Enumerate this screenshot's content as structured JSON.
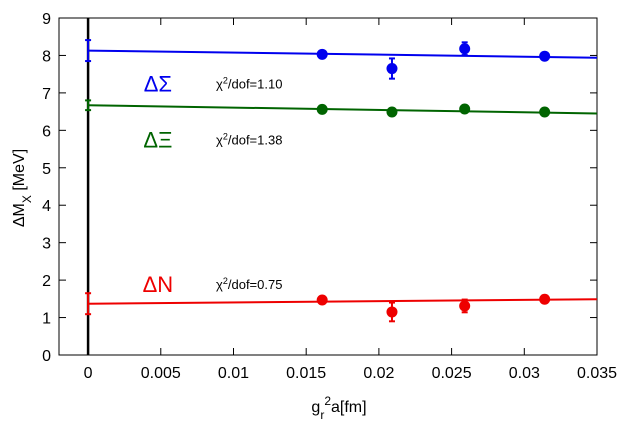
{
  "chart_data": {
    "type": "scatter",
    "xlabel": {
      "base": "g",
      "sub": "r",
      "sup": "2",
      "rest": "a[fm]"
    },
    "ylabel": {
      "base": "ΔM",
      "sub": "X",
      "rest": " [MeV]"
    },
    "xlim": [
      -0.002,
      0.035
    ],
    "ylim": [
      0,
      9
    ],
    "xticks": [
      0,
      0.005,
      0.01,
      0.015,
      0.02,
      0.025,
      0.03,
      0.035
    ],
    "xtick_labels": [
      "0",
      "0.005",
      "0.01",
      "0.015",
      "0.02",
      "0.025",
      "0.03",
      "0.035"
    ],
    "yticks": [
      0,
      1,
      2,
      3,
      4,
      5,
      6,
      7,
      8,
      9
    ],
    "ytick_labels": [
      "0",
      "1",
      "2",
      "3",
      "4",
      "5",
      "6",
      "7",
      "8",
      "9"
    ],
    "grid": false,
    "vertical_line_x": 0,
    "series": [
      {
        "name": "ΔΣ",
        "color": "#0000ee",
        "chi_label": "/dof=1.10",
        "label_pos": [
          0.0048,
          7.25
        ],
        "chi_pos": [
          0.0088,
          7.25
        ],
        "x": [
          0.0161,
          0.0209,
          0.0259,
          0.0314
        ],
        "y": [
          8.03,
          7.65,
          8.18,
          7.98
        ],
        "yerr": [
          0.07,
          0.27,
          0.17,
          0.07
        ],
        "fit": {
          "x": [
            0,
            0.035
          ],
          "y": [
            8.13,
            7.94
          ]
        },
        "extrapolation": {
          "x": 0,
          "y": 8.13,
          "yerr": 0.28
        }
      },
      {
        "name": "ΔΞ",
        "color": "#006400",
        "chi_label": "/dof=1.38",
        "label_pos": [
          0.0048,
          5.75
        ],
        "chi_pos": [
          0.0088,
          5.75
        ],
        "x": [
          0.0161,
          0.0209,
          0.0259,
          0.0314
        ],
        "y": [
          6.56,
          6.49,
          6.57,
          6.49
        ],
        "yerr": [
          0.05,
          0.07,
          0.06,
          0.05
        ],
        "fit": {
          "x": [
            0,
            0.035
          ],
          "y": [
            6.67,
            6.45
          ]
        },
        "extrapolation": {
          "x": 0,
          "y": 6.67,
          "yerr": 0.13
        }
      },
      {
        "name": "ΔN",
        "color": "#ee0000",
        "chi_label": "/dof=0.75",
        "label_pos": [
          0.0048,
          1.9
        ],
        "chi_pos": [
          0.0088,
          1.9
        ],
        "x": [
          0.0161,
          0.0209,
          0.0259,
          0.0314
        ],
        "y": [
          1.47,
          1.15,
          1.31,
          1.49
        ],
        "yerr": [
          0.05,
          0.25,
          0.17,
          0.05
        ],
        "fit": {
          "x": [
            0,
            0.035
          ],
          "y": [
            1.37,
            1.49
          ]
        },
        "extrapolation": {
          "x": 0,
          "y": 1.37,
          "yerr": 0.28
        }
      }
    ]
  }
}
